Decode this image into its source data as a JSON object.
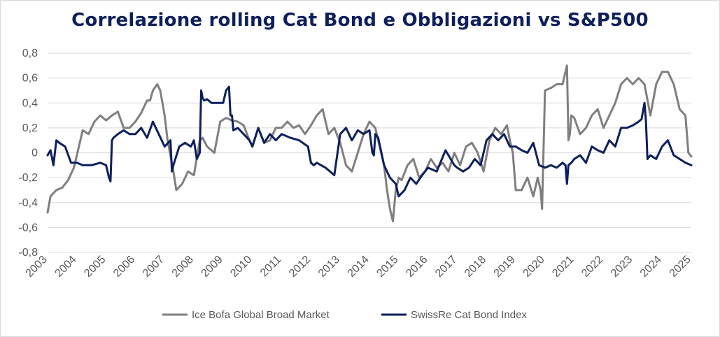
{
  "chart_data": {
    "type": "line",
    "title": "Correlazione rolling Cat Bond e Obbligazioni vs S&P500",
    "xlabel": "",
    "ylabel": "",
    "xlim": [
      2003,
      2025
    ],
    "ylim": [
      -0.8,
      0.8
    ],
    "x_ticks": [
      "2003",
      "2004",
      "2005",
      "2006",
      "2007",
      "2008",
      "2009",
      "2010",
      "2011",
      "2012",
      "2013",
      "2014",
      "2015",
      "2016",
      "2017",
      "2018",
      "2019",
      "2020",
      "2021",
      "2022",
      "2023",
      "2024",
      "2025"
    ],
    "y_ticks": [
      "0,8",
      "0,6",
      "0,4",
      "0,2",
      "0",
      "-0,2",
      "-0,4",
      "-0,6",
      "-0,8"
    ],
    "y_tick_values": [
      0.8,
      0.6,
      0.4,
      0.2,
      0,
      -0.2,
      -0.4,
      -0.6,
      -0.8
    ],
    "grid": true,
    "legend_position": "bottom",
    "series": [
      {
        "name": "Ice Bofa Global Broad Market",
        "color": "#7f7f7f",
        "x": [
          2003.0,
          2003.1,
          2003.3,
          2003.5,
          2003.7,
          2003.9,
          2004.0,
          2004.2,
          2004.4,
          2004.6,
          2004.8,
          2005.0,
          2005.2,
          2005.4,
          2005.6,
          2005.8,
          2006.0,
          2006.2,
          2006.4,
          2006.5,
          2006.6,
          2006.75,
          2006.85,
          2007.0,
          2007.1,
          2007.3,
          2007.4,
          2007.6,
          2007.8,
          2008.0,
          2008.2,
          2008.3,
          2008.45,
          2008.7,
          2008.9,
          2009.1,
          2009.3,
          2009.5,
          2009.7,
          2009.9,
          2010.0,
          2010.2,
          2010.4,
          2010.6,
          2010.8,
          2011.0,
          2011.2,
          2011.4,
          2011.6,
          2011.8,
          2012.0,
          2012.2,
          2012.4,
          2012.6,
          2012.8,
          2013.0,
          2013.2,
          2013.4,
          2013.6,
          2013.8,
          2014.0,
          2014.2,
          2014.3,
          2014.5,
          2014.6,
          2014.7,
          2014.8,
          2014.9,
          2015.0,
          2015.1,
          2015.3,
          2015.5,
          2015.7,
          2015.9,
          2016.1,
          2016.3,
          2016.5,
          2016.7,
          2016.9,
          2017.1,
          2017.3,
          2017.5,
          2017.7,
          2017.9,
          2018.1,
          2018.3,
          2018.5,
          2018.7,
          2018.8,
          2018.9,
          2019.0,
          2019.2,
          2019.4,
          2019.6,
          2019.75,
          2019.85,
          2019.9,
          2020.0,
          2020.2,
          2020.4,
          2020.6,
          2020.75,
          2020.8,
          2020.85,
          2020.9,
          2021.0,
          2021.2,
          2021.4,
          2021.6,
          2021.8,
          2022.0,
          2022.2,
          2022.4,
          2022.6,
          2022.8,
          2023.0,
          2023.2,
          2023.4,
          2023.6,
          2023.8,
          2024.0,
          2024.2,
          2024.4,
          2024.6,
          2024.8,
          2024.9,
          2025.0
        ],
        "y": [
          -0.48,
          -0.35,
          -0.3,
          -0.28,
          -0.22,
          -0.12,
          -0.02,
          0.18,
          0.15,
          0.25,
          0.3,
          0.26,
          0.3,
          0.33,
          0.2,
          0.2,
          0.25,
          0.32,
          0.42,
          0.42,
          0.5,
          0.55,
          0.5,
          0.3,
          0.1,
          -0.15,
          -0.3,
          -0.25,
          -0.15,
          -0.18,
          0.1,
          0.12,
          0.05,
          0.0,
          0.25,
          0.28,
          0.26,
          0.25,
          0.22,
          0.1,
          0.05,
          0.2,
          0.08,
          0.1,
          0.2,
          0.2,
          0.25,
          0.2,
          0.22,
          0.15,
          0.22,
          0.3,
          0.35,
          0.15,
          0.2,
          0.08,
          -0.1,
          -0.15,
          0.0,
          0.15,
          0.25,
          0.2,
          0.1,
          -0.1,
          -0.3,
          -0.45,
          -0.55,
          -0.3,
          -0.2,
          -0.22,
          -0.1,
          -0.05,
          -0.2,
          -0.15,
          -0.05,
          -0.12,
          -0.08,
          -0.15,
          0.0,
          -0.1,
          0.05,
          0.08,
          0.0,
          -0.15,
          0.1,
          0.2,
          0.15,
          0.22,
          0.1,
          0.0,
          -0.3,
          -0.3,
          -0.2,
          -0.35,
          -0.2,
          -0.3,
          -0.45,
          0.5,
          0.52,
          0.55,
          0.55,
          0.7,
          0.1,
          0.15,
          0.3,
          0.28,
          0.15,
          0.2,
          0.3,
          0.35,
          0.2,
          0.3,
          0.4,
          0.55,
          0.6,
          0.55,
          0.6,
          0.55,
          0.3,
          0.55,
          0.65,
          0.65,
          0.55,
          0.35,
          0.3,
          0.0,
          -0.03
        ]
      },
      {
        "name": "SwissRe Cat Bond Index",
        "color": "#0d1f5c",
        "x": [
          2003.0,
          2003.1,
          2003.2,
          2003.3,
          2003.4,
          2003.6,
          2003.8,
          2004.0,
          2004.2,
          2004.5,
          2004.8,
          2005.0,
          2005.1,
          2005.15,
          2005.2,
          2005.25,
          2005.4,
          2005.6,
          2005.8,
          2006.0,
          2006.2,
          2006.4,
          2006.6,
          2006.8,
          2007.0,
          2007.2,
          2007.25,
          2007.3,
          2007.5,
          2007.7,
          2007.9,
          2008.0,
          2008.1,
          2008.2,
          2008.25,
          2008.3,
          2008.35,
          2008.45,
          2008.6,
          2008.8,
          2009.0,
          2009.1,
          2009.2,
          2009.25,
          2009.3,
          2009.35,
          2009.5,
          2009.7,
          2009.9,
          2010.0,
          2010.2,
          2010.4,
          2010.6,
          2010.8,
          2011.0,
          2011.3,
          2011.6,
          2011.9,
          2012.0,
          2012.1,
          2012.2,
          2012.5,
          2012.8,
          2013.0,
          2013.2,
          2013.4,
          2013.6,
          2013.8,
          2014.0,
          2014.1,
          2014.15,
          2014.2,
          2014.3,
          2014.5,
          2014.7,
          2014.9,
          2015.0,
          2015.2,
          2015.4,
          2015.6,
          2015.8,
          2016.0,
          2016.3,
          2016.6,
          2016.9,
          2017.0,
          2017.2,
          2017.4,
          2017.6,
          2017.8,
          2018.0,
          2018.2,
          2018.4,
          2018.6,
          2018.8,
          2019.0,
          2019.2,
          2019.4,
          2019.6,
          2019.8,
          2020.0,
          2020.2,
          2020.4,
          2020.6,
          2020.7,
          2020.75,
          2020.8,
          2020.9,
          2021.0,
          2021.2,
          2021.4,
          2021.6,
          2021.8,
          2022.0,
          2022.2,
          2022.4,
          2022.6,
          2022.8,
          2023.0,
          2023.2,
          2023.3,
          2023.4,
          2023.45,
          2023.5,
          2023.6,
          2023.8,
          2024.0,
          2024.2,
          2024.4,
          2024.6,
          2024.8,
          2025.0
        ],
        "y": [
          -0.02,
          0.02,
          -0.1,
          0.1,
          0.08,
          0.05,
          -0.08,
          -0.08,
          -0.1,
          -0.1,
          -0.08,
          -0.1,
          -0.2,
          -0.23,
          0.1,
          0.12,
          0.15,
          0.18,
          0.15,
          0.15,
          0.2,
          0.12,
          0.25,
          0.15,
          0.05,
          0.1,
          -0.15,
          -0.1,
          0.05,
          0.08,
          0.05,
          0.1,
          -0.05,
          0.0,
          0.5,
          0.44,
          0.42,
          0.43,
          0.4,
          0.4,
          0.4,
          0.5,
          0.53,
          0.3,
          0.3,
          0.18,
          0.2,
          0.15,
          0.1,
          0.05,
          0.2,
          0.08,
          0.15,
          0.1,
          0.15,
          0.12,
          0.1,
          0.05,
          -0.08,
          -0.1,
          -0.08,
          -0.12,
          -0.18,
          0.15,
          0.2,
          0.1,
          0.18,
          0.15,
          0.18,
          0.0,
          -0.02,
          0.15,
          0.12,
          -0.1,
          -0.2,
          -0.25,
          -0.35,
          -0.3,
          -0.2,
          -0.25,
          -0.18,
          -0.12,
          -0.15,
          0.02,
          -0.1,
          -0.12,
          -0.15,
          -0.12,
          -0.05,
          -0.1,
          0.1,
          0.15,
          0.1,
          0.15,
          0.05,
          0.05,
          0.02,
          0.0,
          0.08,
          -0.1,
          -0.12,
          -0.1,
          -0.12,
          -0.08,
          -0.1,
          -0.25,
          -0.1,
          -0.08,
          -0.05,
          -0.02,
          -0.08,
          0.05,
          0.02,
          0.0,
          0.1,
          0.05,
          0.2,
          0.2,
          0.22,
          0.25,
          0.27,
          0.4,
          0.25,
          -0.05,
          -0.02,
          -0.05,
          0.05,
          0.1,
          -0.02,
          -0.05,
          -0.08,
          -0.1
        ]
      }
    ]
  }
}
